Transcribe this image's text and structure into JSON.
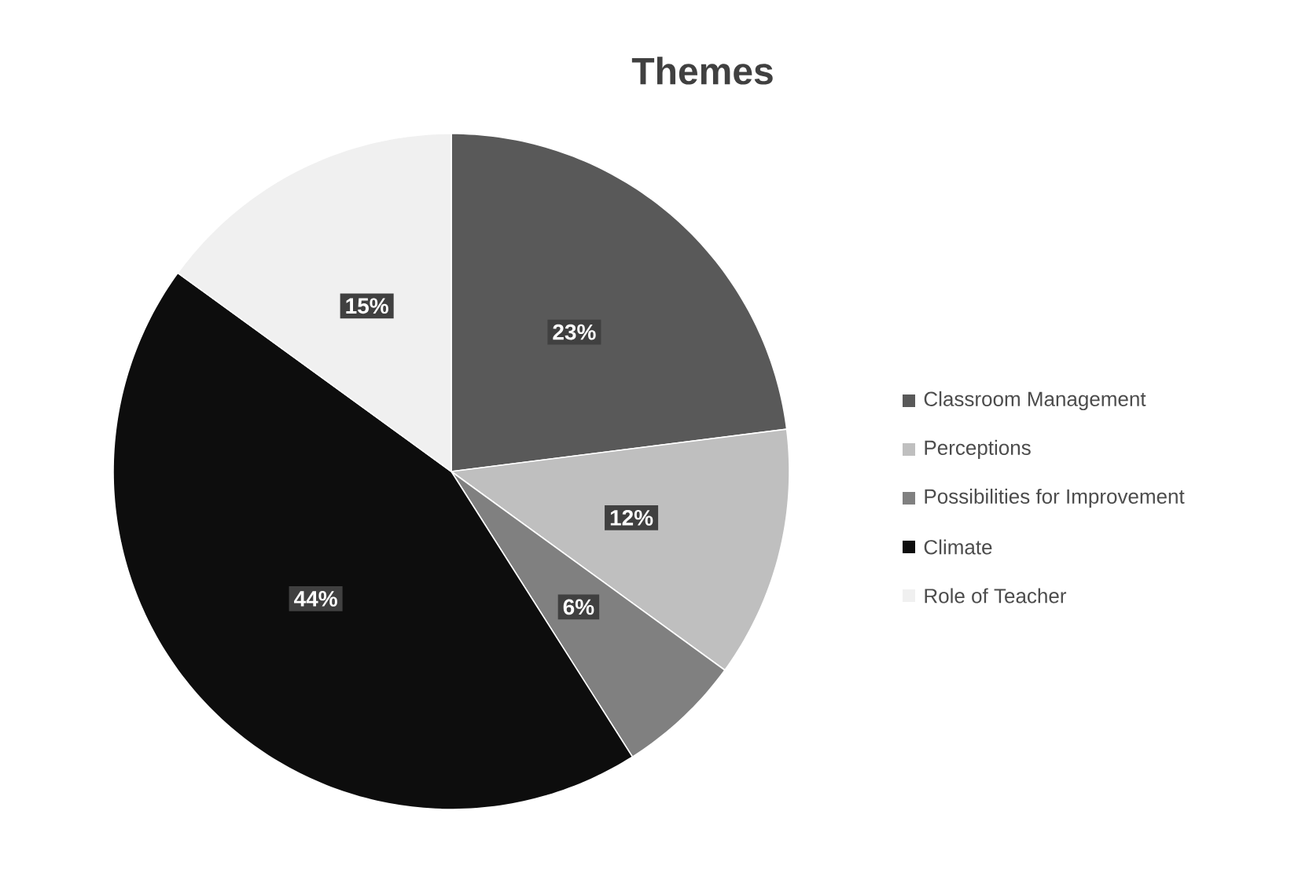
{
  "chart_data": {
    "type": "pie",
    "title": "Themes",
    "categories": [
      "Classroom Management",
      "Perceptions",
      "Possibilities for Improvement",
      "Climate",
      "Role of Teacher"
    ],
    "values": [
      23,
      12,
      6,
      44,
      15
    ],
    "value_labels": [
      "23%",
      "12%",
      "6%",
      "44%",
      "15%"
    ],
    "colors": [
      "#595959",
      "#bfbfbf",
      "#808080",
      "#0d0d0d",
      "#f0f0f0"
    ],
    "legend": "right"
  }
}
